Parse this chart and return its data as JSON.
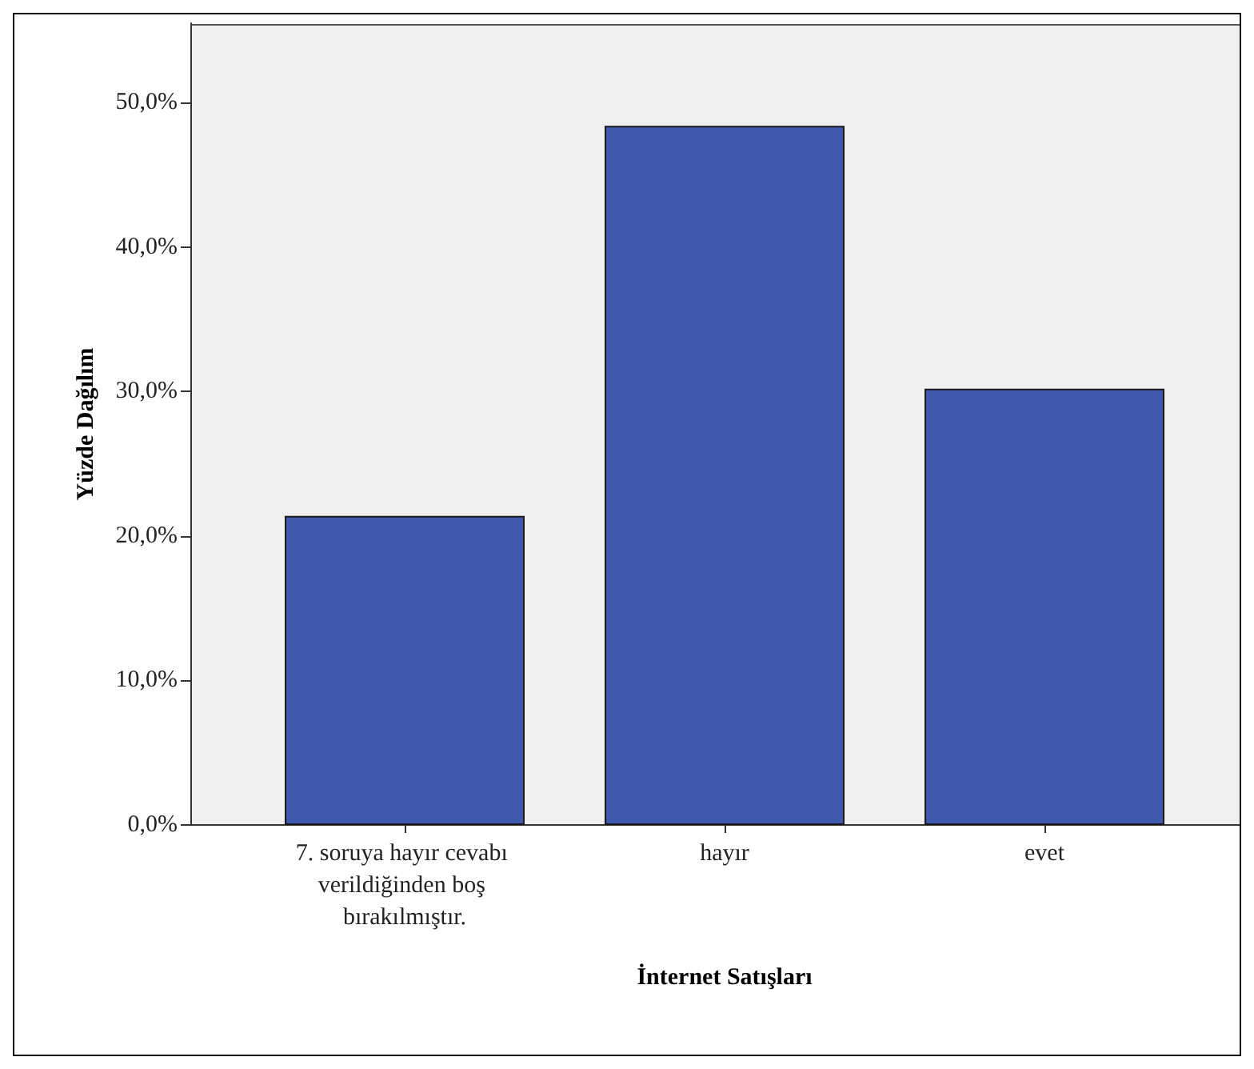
{
  "chart_data": {
    "type": "bar",
    "xlabel": "İnternet Satışları",
    "ylabel": "Yüzde Dağılım",
    "categories": [
      "7. soruya hayır cevabı verildiğinden boş bırakılmıştır.",
      "hayır",
      "evet"
    ],
    "values": [
      21.4,
      48.4,
      30.2
    ],
    "color": "#3e58ac",
    "ylim": [
      0,
      55.5
    ],
    "yticks": [
      {
        "value": 0,
        "label": "0,0%"
      },
      {
        "value": 10,
        "label": "10,0%"
      },
      {
        "value": 20,
        "label": "20,0%"
      },
      {
        "value": 30,
        "label": "30,0%"
      },
      {
        "value": 40,
        "label": "40,0%"
      },
      {
        "value": 50,
        "label": "50,0%"
      }
    ]
  }
}
